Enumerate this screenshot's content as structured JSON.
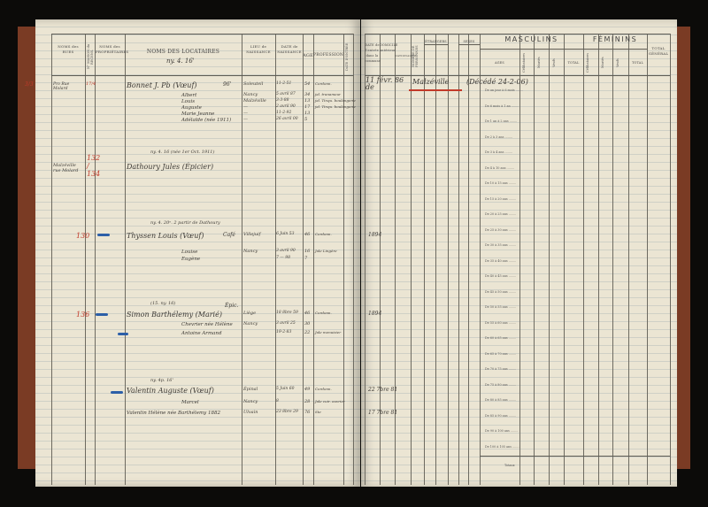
{
  "left_page": {
    "headers": {
      "noms_rues": "NOMS des RUES",
      "numeros": "N° MAISON du RECENS.",
      "noms_proprietaires": "NOMS des PROPRIÉTAIRES",
      "noms_locataires": "NOMS DES LOCATAIRES",
      "lieu": "LIEU de NAISSANCE",
      "date": "DATE de NAISSANCE",
      "age": "AGE",
      "profession": "PROFESSION",
      "vertical_last": "DATE D'ENTRÉE"
    },
    "locataires_note": "ny. 4. 16'",
    "entries": [
      {
        "margin": "3/3",
        "rue": "Pro Rue Molard",
        "numero": "17/4",
        "name": "Bonnet J. Pb (Vœuf)",
        "mark": "96'",
        "lieu": "Soleuteil",
        "date": "11-2-51",
        "age": "54",
        "profession": "Cordonn."
      },
      {
        "name": "Albert",
        "lieu": "Nancy",
        "date": "5 avril 87",
        "age": "34",
        "profession": "jal. tranameur"
      },
      {
        "name": "Louis",
        "lieu": "Malzéville",
        "date": "3-3-88",
        "age": "13",
        "profession": "jal. Tinqu. boulangerie"
      },
      {
        "name": "Auguste",
        "lieu": "—",
        "date": "2 avril 90",
        "age": "17",
        "profession": "jal. Tinqu. boulangerie"
      },
      {
        "name": "Marie Jeanne",
        "lieu": "—",
        "date": "11-2-92",
        "age": "13"
      },
      {
        "name": "Adélaïde (née 1911)",
        "lieu": "—",
        "date": "26 avril 00",
        "age": "5"
      },
      {
        "note": "ny. 4. 16 (née 1er Oct. 1911)",
        "numero": "Malzéville rue Molard",
        "red": "132 / 134",
        "name": "Dathoury Jules (Épicier)"
      },
      {
        "note": "ny. 4. 20ᵉ. 2 partir de Dathoury",
        "red": "130",
        "name": "Thyssen Louis (Vœuf)",
        "mark": "Café",
        "lieu": "Villejuif",
        "date": "6 Juin 53",
        "age": "46",
        "profession": "Cordonn.",
        "entree": "1894"
      },
      {
        "name": "Louise",
        "lieu": "Nancy",
        "date": "3 avril 90",
        "age": "16",
        "profession": "Jale Lingère"
      },
      {
        "name": "Eugène",
        "date": "7 — 98",
        "age": "7"
      },
      {
        "note": "(15. ny. 16)",
        "red": "136",
        "name": "Simon Barthélemy (Marié)",
        "mark": "Épic.",
        "lieu": "Liège",
        "date": "18 8bre 59",
        "age": "46",
        "profession": "Cordonn.",
        "entree": "1894"
      },
      {
        "name": "Chevrier née Hélène",
        "lieu": "Nancy",
        "date": "3 avril 25",
        "age": "30"
      },
      {
        "name": "Antoine Armand",
        "date": "19-2-83",
        "age": "22",
        "profession": "Jale menuisier"
      },
      {
        "note": "ny. 4p. 16'",
        "name": "Valentin Auguste (Vœuf)",
        "lieu": "Épinal",
        "date": "5 Juin 60",
        "age": "49",
        "profession": "Cordonn.",
        "entree": "22 7bre 81"
      },
      {
        "name": "Marcel",
        "lieu": "Nancy",
        "date": "8",
        "age": "28",
        "profession": "Jale cuir. ouvrier"
      },
      {
        "name": "Valentin Hélène née Barthélemy 1882",
        "lieu": "Ulvain",
        "date": "23 8bre 29",
        "age": "76",
        "profession": "Ste",
        "entree": "17 7bre 81"
      }
    ]
  },
  "right_page": {
    "headers": {
      "date_entree": "DATE de l'entrée dans la commune",
      "domicile": "DOMICILE antérieur",
      "nationalite": "NATIONALITÉ",
      "col_vertical": "NOMBRE DE PERSONNES",
      "etrangers": "ÉTRANGERS",
      "sexes": "SEXES",
      "masculins": "MASCULINS",
      "feminins": "FÉMININS",
      "ages": "AGES",
      "celibataires": "Célibataires",
      "maries": "Mariés",
      "veufs": "Veufs",
      "total": "TOTAL",
      "total_general": "TOTAL GÉNÉRAL"
    },
    "first_entry": {
      "date": "11 févr. 86 de",
      "domicile": "Malzéville",
      "note": "(Décédé 24-2-06)"
    },
    "age_brackets": [
      "De un jour à 6 mois",
      "De 6 mois à 1 an",
      "De 1 an à 2 ans",
      "De 2 à 3 ans",
      "De 3 à 4 ans",
      "De 4 à 10 ans",
      "De 10 à 15 ans",
      "De 15 à 20 ans",
      "De 20 à 25 ans",
      "De 25 à 30 ans",
      "De 30 à 35 ans",
      "De 35 à 40 ans",
      "De 40 à 45 ans",
      "De 45 à 50 ans",
      "De 50 à 55 ans",
      "De 55 à 60 ans",
      "De 60 à 65 ans",
      "De 65 à 70 ans",
      "De 70 à 75 ans",
      "De 75 à 80 ans",
      "De 80 à 85 ans",
      "De 85 à 90 ans",
      "De 90 à 100 ans",
      "De 100 à 105 ans"
    ],
    "total_label": "Totaux"
  },
  "colors": {
    "paper": "#ebe5d3",
    "ink": "#3d3a36",
    "red_pencil": "#c23a2a",
    "blue_pencil": "#2c5fa8",
    "binding": "#7a3b24"
  }
}
